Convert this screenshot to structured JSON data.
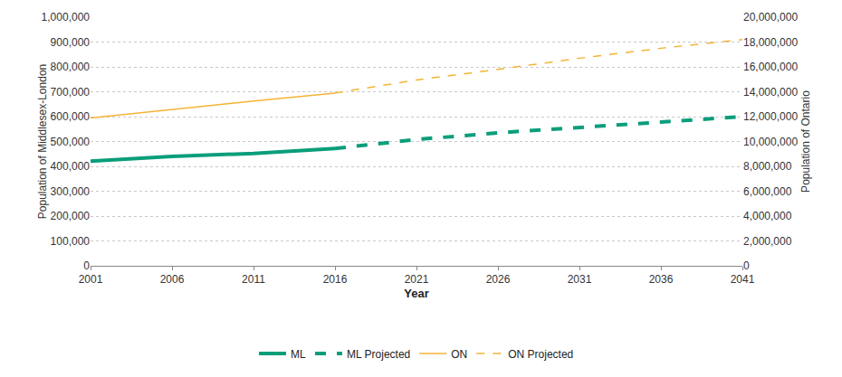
{
  "chart_data": {
    "type": "line",
    "x_label": "Year",
    "y_label": "Population of Middlesex-London",
    "y2_label": "Population of Ontario",
    "x": [
      2001,
      2006,
      2011,
      2016,
      2021,
      2026,
      2031,
      2036,
      2041
    ],
    "series": [
      {
        "name": "ML",
        "color": "#0a9e7b",
        "line_style": "solid",
        "axis": "y",
        "values": [
          421000,
          440000,
          452000,
          472000,
          null,
          null,
          null,
          null,
          null
        ]
      },
      {
        "name": "ML Projected",
        "color": "#0a9e7b",
        "line_style": "dash",
        "axis": "y",
        "values": [
          null,
          null,
          null,
          472000,
          508000,
          535000,
          558000,
          578000,
          600000
        ]
      },
      {
        "name": "ON",
        "color": "#f5b335",
        "line_style": "solid",
        "axis": "y2",
        "values": [
          11900000,
          12600000,
          13250000,
          13900000,
          null,
          null,
          null,
          null,
          null
        ]
      },
      {
        "name": "ON Projected",
        "color": "#f5b335",
        "line_style": "dash",
        "axis": "y2",
        "values": [
          null,
          null,
          null,
          13900000,
          14950000,
          15800000,
          16700000,
          17500000,
          18200000
        ]
      }
    ],
    "xlim": [
      2001,
      2041
    ],
    "xticks": [
      2001,
      2006,
      2011,
      2016,
      2021,
      2026,
      2031,
      2036,
      2041
    ],
    "ylim": [
      0,
      1000000
    ],
    "yticks": [
      0,
      {
        "value": 100000,
        "label": "100,000"
      },
      {
        "value": 200000,
        "label": "200,000"
      },
      {
        "value": 300000,
        "label": "300,000"
      },
      {
        "value": 400000,
        "label": "400,000"
      },
      {
        "value": 500000,
        "label": "500,000"
      },
      {
        "value": 600000,
        "label": "600,000"
      },
      {
        "value": 700000,
        "label": "700,000"
      },
      {
        "value": 800000,
        "label": "800,000"
      },
      {
        "value": 900000,
        "label": "900,000"
      },
      {
        "value": 1000000,
        "label": "1,000,000"
      }
    ],
    "y2lim": [
      0,
      20000000
    ],
    "y2ticks": [
      0,
      {
        "value": 2000000,
        "label": "2,000,000"
      },
      {
        "value": 4000000,
        "label": "4,000,000"
      },
      {
        "value": 6000000,
        "label": "6,000,000"
      },
      {
        "value": 8000000,
        "label": "8,000,000"
      },
      {
        "value": 10000000,
        "label": "10,000,000"
      },
      {
        "value": 12000000,
        "label": "12,000,000"
      },
      {
        "value": 14000000,
        "label": "14,000,000"
      },
      {
        "value": 16000000,
        "label": "16,000,000"
      },
      {
        "value": 18000000,
        "label": "18,000,000"
      },
      {
        "value": 20000000,
        "label": "20,000,000"
      }
    ],
    "grid": true,
    "legend": "bottom"
  }
}
